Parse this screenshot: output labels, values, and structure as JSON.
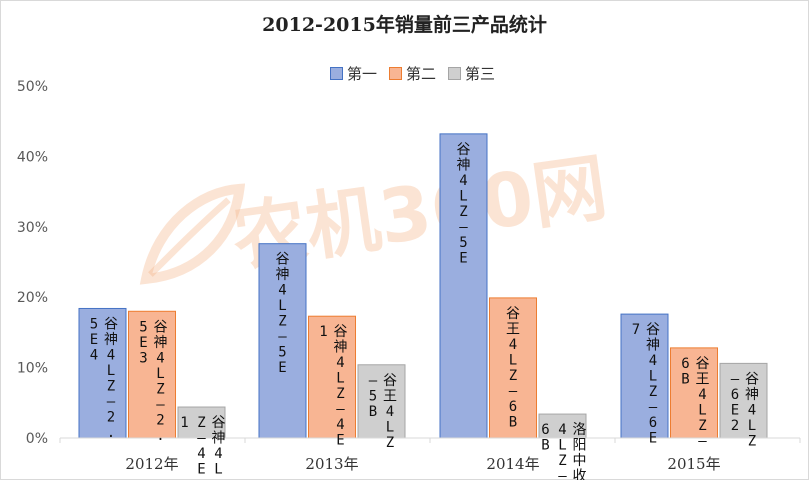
{
  "title": "2012-2015年销量前三产品统计",
  "watermark": "农机360网",
  "colors": {
    "series1_fill": "#9aaedf",
    "series1_stroke": "#4472c4",
    "series2_fill": "#f8b593",
    "series2_stroke": "#ed7d31",
    "series3_fill": "#cfcfcf",
    "series3_stroke": "#a5a5a5",
    "axis": "#d9d9d9"
  },
  "chart_data": {
    "type": "bar",
    "title": "2012-2015年销量前三产品统计",
    "categories": [
      "2012年",
      "2013年",
      "2014年",
      "2015年"
    ],
    "series": [
      {
        "name": "第一",
        "values": [
          18.4,
          27.6,
          43.2,
          17.6
        ]
      },
      {
        "name": "第二",
        "values": [
          18.0,
          17.3,
          19.9,
          12.8
        ]
      },
      {
        "name": "第三",
        "values": [
          4.4,
          10.4,
          3.4,
          10.6
        ]
      }
    ],
    "data_labels": [
      [
        "谷神4LZ-2.5E4",
        "谷神4LZ-2.5E3",
        "谷神4LZ-4E1"
      ],
      [
        "谷神4LZ-5E",
        "谷神4LZ-4E1",
        "谷王4LZ-5B"
      ],
      [
        "谷神4LZ-5E",
        "谷王4LZ-6B",
        "洛阳中收4LZ-6B"
      ],
      [
        "谷神4LZ-6E7",
        "谷王4LZ-6B",
        "谷神4LZ-6E2"
      ]
    ],
    "y_tick_labels": [
      "0%",
      "10%",
      "20%",
      "30%",
      "40%",
      "50%"
    ],
    "ylim": [
      0,
      50
    ],
    "y_unit": "%",
    "grid": false,
    "legend_position": "top"
  }
}
